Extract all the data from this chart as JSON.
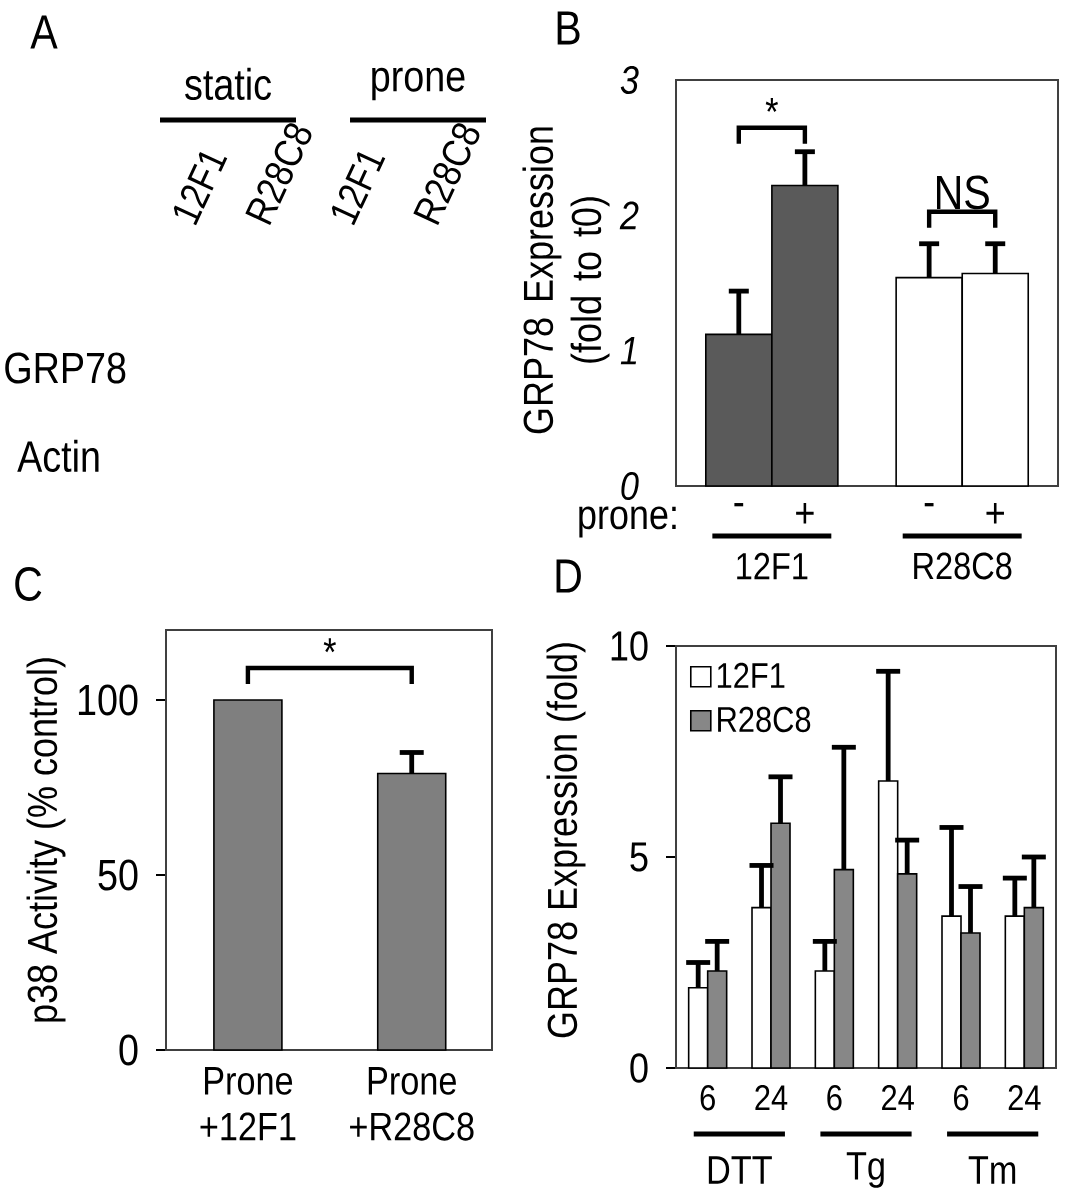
{
  "chart_data": [
    {
      "type": "other",
      "title": "A",
      "categories": [
        "12F1",
        "R28C8",
        "12F1",
        "R28C8"
      ],
      "annotations": [
        "static",
        "prone",
        "GRP78",
        "Actin"
      ]
    },
    {
      "type": "bar",
      "title": "B",
      "ylabel": "GRP78 Expression (fold to t0)",
      "categories": [
        "-",
        "+",
        "-",
        "+"
      ],
      "values": [
        1.12,
        2.22,
        1.54,
        1.57
      ],
      "colors": [
        "#5a5a5a",
        "#5a5a5a",
        "#ffffff",
        "#ffffff"
      ],
      "errors": [
        [
          1.12,
          1.44
        ],
        [
          2.22,
          2.47
        ],
        [
          1.54,
          1.79
        ],
        [
          1.57,
          1.79
        ]
      ],
      "ylim": [
        0,
        3
      ],
      "yticks": [
        0,
        1,
        2,
        3
      ],
      "annotations": [
        "*",
        "NS",
        "prone:",
        "12F1",
        "R28C8"
      ]
    },
    {
      "type": "bar",
      "title": "C",
      "ylabel": "p38 Activity (% control)",
      "categories": [
        "Prone +12F1",
        "Prone +R28C8"
      ],
      "values": [
        100,
        79
      ],
      "color": "#7f7f7f",
      "errors": [
        null,
        [
          79,
          85
        ]
      ],
      "ylim": [
        0,
        120
      ],
      "yticks": [
        0,
        50,
        100
      ],
      "annotations": [
        "*"
      ]
    },
    {
      "type": "bar",
      "title": "D",
      "ylabel": "GRP78 Expression (fold)",
      "categories": [
        "6",
        "24",
        "6",
        "24",
        "6",
        "24"
      ],
      "series": [
        {
          "name": "12F1",
          "color": "#ffffff",
          "values": [
            1.9,
            3.8,
            2.3,
            6.8,
            3.6,
            3.6
          ],
          "errors": [
            [
              1.9,
              2.5
            ],
            [
              3.8,
              4.8
            ],
            [
              2.3,
              3.0
            ],
            [
              6.8,
              9.4
            ],
            [
              3.6,
              5.7
            ],
            [
              3.6,
              4.5
            ]
          ]
        },
        {
          "name": "R28C8",
          "color": "#878787",
          "values": [
            2.3,
            5.8,
            4.7,
            4.6,
            3.2,
            3.8
          ],
          "errors": [
            [
              2.3,
              3.0
            ],
            [
              5.8,
              6.9
            ],
            [
              4.7,
              7.6
            ],
            [
              4.6,
              5.4
            ],
            [
              3.2,
              4.3
            ],
            [
              3.8,
              5.0
            ]
          ]
        }
      ],
      "ylim": [
        0,
        10
      ],
      "yticks": [
        0,
        5,
        10
      ],
      "legend": "top left",
      "annotations": [
        "DTT",
        "Tg",
        "Tm"
      ]
    }
  ]
}
